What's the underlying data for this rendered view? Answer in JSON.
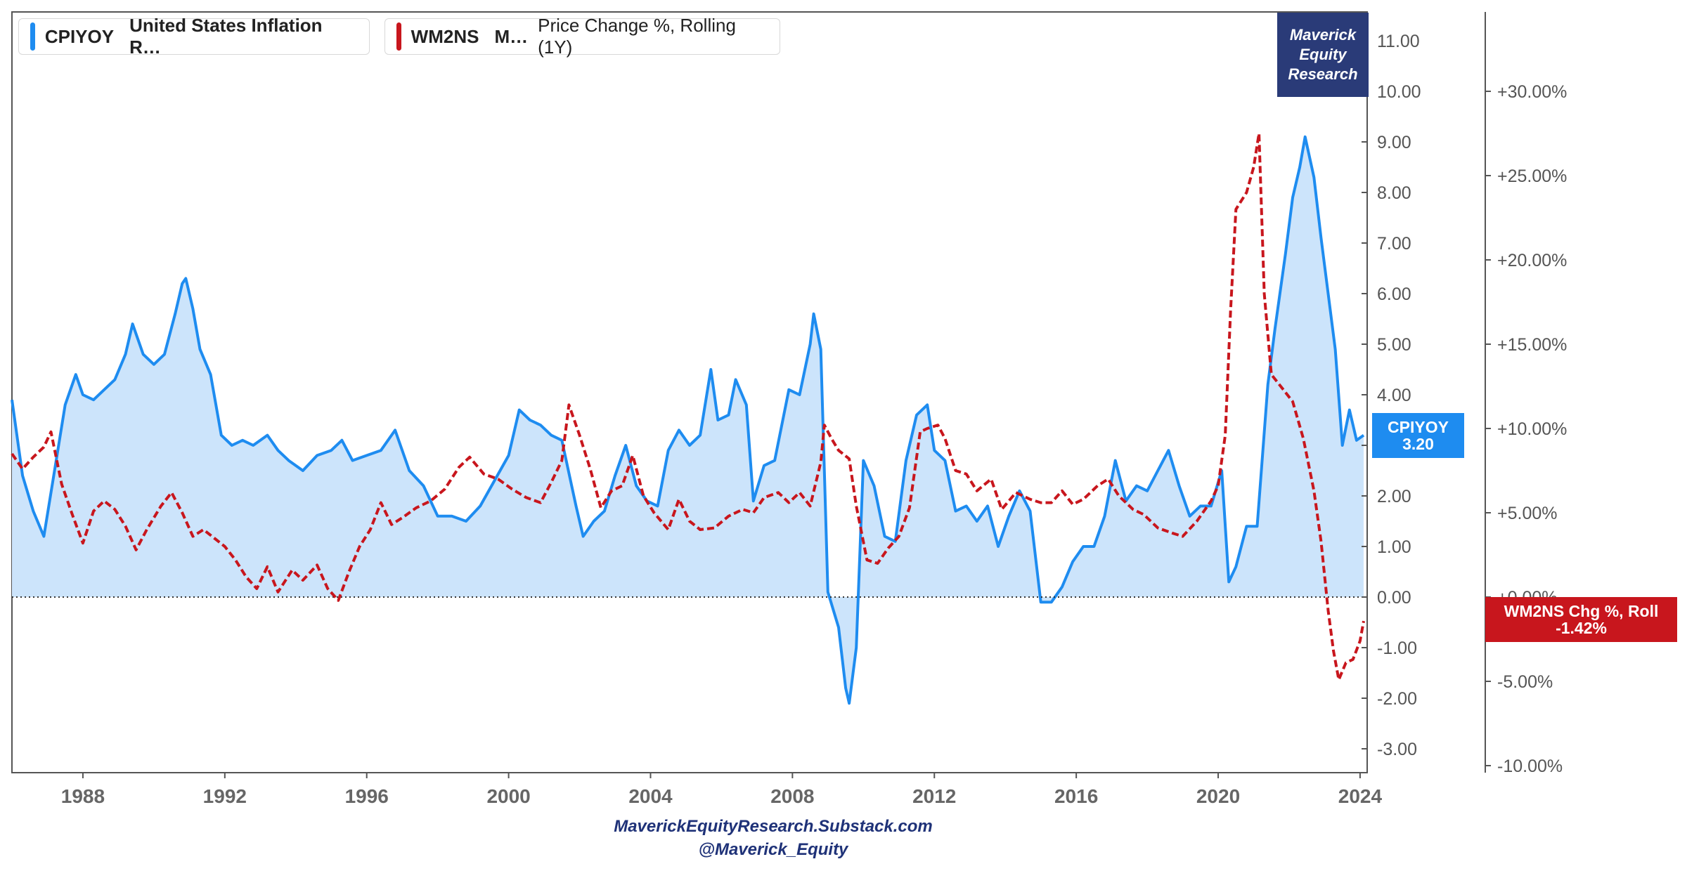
{
  "legend": [
    {
      "code": "CPIYOY",
      "name": "United States Inflation R…",
      "metric": "",
      "color": "#1e8cf0"
    },
    {
      "code": "WM2NS",
      "name": "M…",
      "metric": "Price Change %, Rolling (1Y)",
      "color": "#c8161d"
    }
  ],
  "brand": [
    "Maverick",
    "Equity",
    "Research"
  ],
  "tags": {
    "cpi_name": "CPIYOY",
    "cpi_value": "3.20",
    "m2_name": "WM2NS Chg %, Roll",
    "m2_value": "-1.42%"
  },
  "footer": {
    "line1": "MaverickEquityResearch.Substack.com",
    "line2": "@Maverick_Equity"
  },
  "chart_data": {
    "type": "line",
    "x_range": [
      1986.0,
      2024.2
    ],
    "x_ticks": [
      "1988",
      "1992",
      "1996",
      "2000",
      "2004",
      "2008",
      "2012",
      "2016",
      "2020",
      "2024"
    ],
    "y_left": {
      "min": -3.5,
      "max": 11.5,
      "ticks": [
        "11.00",
        "10.00",
        "9.00",
        "8.00",
        "7.00",
        "6.00",
        "5.00",
        "4.00",
        "3.00",
        "2.00",
        "1.00",
        "0.00",
        "-1.00",
        "-2.00",
        "-3.00"
      ]
    },
    "y_right": {
      "min": -10.0,
      "max": 35.0,
      "ticks": [
        "+30.00%",
        "+25.00%",
        "+20.00%",
        "+15.00%",
        "+10.00%",
        "+5.00%",
        "+0.00%",
        "-5.00%",
        "-10.00%"
      ]
    },
    "zero_line": "dotted",
    "series": [
      {
        "name": "CPIYOY",
        "axis": "left",
        "style": "solid-area",
        "color": "#1e8cf0",
        "fill": "#cce4fb",
        "points": [
          [
            1986.0,
            3.9
          ],
          [
            1986.3,
            2.4
          ],
          [
            1986.6,
            1.7
          ],
          [
            1986.9,
            1.2
          ],
          [
            1987.2,
            2.5
          ],
          [
            1987.5,
            3.8
          ],
          [
            1987.8,
            4.4
          ],
          [
            1988.0,
            4.0
          ],
          [
            1988.3,
            3.9
          ],
          [
            1988.6,
            4.1
          ],
          [
            1988.9,
            4.3
          ],
          [
            1989.2,
            4.8
          ],
          [
            1989.4,
            5.4
          ],
          [
            1989.7,
            4.8
          ],
          [
            1990.0,
            4.6
          ],
          [
            1990.3,
            4.8
          ],
          [
            1990.6,
            5.6
          ],
          [
            1990.8,
            6.2
          ],
          [
            1990.9,
            6.3
          ],
          [
            1991.1,
            5.7
          ],
          [
            1991.3,
            4.9
          ],
          [
            1991.6,
            4.4
          ],
          [
            1991.9,
            3.2
          ],
          [
            1992.2,
            3.0
          ],
          [
            1992.5,
            3.1
          ],
          [
            1992.8,
            3.0
          ],
          [
            1993.2,
            3.2
          ],
          [
            1993.5,
            2.9
          ],
          [
            1993.8,
            2.7
          ],
          [
            1994.2,
            2.5
          ],
          [
            1994.6,
            2.8
          ],
          [
            1995.0,
            2.9
          ],
          [
            1995.3,
            3.1
          ],
          [
            1995.6,
            2.7
          ],
          [
            1996.0,
            2.8
          ],
          [
            1996.4,
            2.9
          ],
          [
            1996.8,
            3.3
          ],
          [
            1997.2,
            2.5
          ],
          [
            1997.6,
            2.2
          ],
          [
            1998.0,
            1.6
          ],
          [
            1998.4,
            1.6
          ],
          [
            1998.8,
            1.5
          ],
          [
            1999.2,
            1.8
          ],
          [
            1999.6,
            2.3
          ],
          [
            2000.0,
            2.8
          ],
          [
            2000.3,
            3.7
          ],
          [
            2000.6,
            3.5
          ],
          [
            2000.9,
            3.4
          ],
          [
            2001.2,
            3.2
          ],
          [
            2001.5,
            3.1
          ],
          [
            2001.9,
            1.8
          ],
          [
            2002.1,
            1.2
          ],
          [
            2002.4,
            1.5
          ],
          [
            2002.7,
            1.7
          ],
          [
            2003.0,
            2.4
          ],
          [
            2003.3,
            3.0
          ],
          [
            2003.6,
            2.2
          ],
          [
            2003.9,
            1.9
          ],
          [
            2004.2,
            1.8
          ],
          [
            2004.5,
            2.9
          ],
          [
            2004.8,
            3.3
          ],
          [
            2005.1,
            3.0
          ],
          [
            2005.4,
            3.2
          ],
          [
            2005.7,
            4.5
          ],
          [
            2005.9,
            3.5
          ],
          [
            2006.2,
            3.6
          ],
          [
            2006.4,
            4.3
          ],
          [
            2006.7,
            3.8
          ],
          [
            2006.9,
            1.9
          ],
          [
            2007.2,
            2.6
          ],
          [
            2007.5,
            2.7
          ],
          [
            2007.9,
            4.1
          ],
          [
            2008.2,
            4.0
          ],
          [
            2008.5,
            5.0
          ],
          [
            2008.6,
            5.6
          ],
          [
            2008.8,
            4.9
          ],
          [
            2009.0,
            0.1
          ],
          [
            2009.3,
            -0.6
          ],
          [
            2009.5,
            -1.8
          ],
          [
            2009.6,
            -2.1
          ],
          [
            2009.8,
            -1.0
          ],
          [
            2010.0,
            2.7
          ],
          [
            2010.3,
            2.2
          ],
          [
            2010.6,
            1.2
          ],
          [
            2010.9,
            1.1
          ],
          [
            2011.2,
            2.7
          ],
          [
            2011.5,
            3.6
          ],
          [
            2011.8,
            3.8
          ],
          [
            2012.0,
            2.9
          ],
          [
            2012.3,
            2.7
          ],
          [
            2012.6,
            1.7
          ],
          [
            2012.9,
            1.8
          ],
          [
            2013.2,
            1.5
          ],
          [
            2013.5,
            1.8
          ],
          [
            2013.8,
            1.0
          ],
          [
            2014.1,
            1.6
          ],
          [
            2014.4,
            2.1
          ],
          [
            2014.7,
            1.7
          ],
          [
            2015.0,
            -0.1
          ],
          [
            2015.3,
            -0.1
          ],
          [
            2015.6,
            0.2
          ],
          [
            2015.9,
            0.7
          ],
          [
            2016.2,
            1.0
          ],
          [
            2016.5,
            1.0
          ],
          [
            2016.8,
            1.6
          ],
          [
            2017.1,
            2.7
          ],
          [
            2017.4,
            1.9
          ],
          [
            2017.7,
            2.2
          ],
          [
            2018.0,
            2.1
          ],
          [
            2018.3,
            2.5
          ],
          [
            2018.6,
            2.9
          ],
          [
            2018.9,
            2.2
          ],
          [
            2019.2,
            1.6
          ],
          [
            2019.5,
            1.8
          ],
          [
            2019.8,
            1.8
          ],
          [
            2020.1,
            2.5
          ],
          [
            2020.3,
            0.3
          ],
          [
            2020.5,
            0.6
          ],
          [
            2020.8,
            1.4
          ],
          [
            2021.1,
            1.4
          ],
          [
            2021.4,
            4.2
          ],
          [
            2021.6,
            5.3
          ],
          [
            2021.9,
            6.8
          ],
          [
            2022.1,
            7.9
          ],
          [
            2022.3,
            8.5
          ],
          [
            2022.45,
            9.1
          ],
          [
            2022.7,
            8.3
          ],
          [
            2022.9,
            7.1
          ],
          [
            2023.1,
            6.0
          ],
          [
            2023.3,
            4.9
          ],
          [
            2023.5,
            3.0
          ],
          [
            2023.7,
            3.7
          ],
          [
            2023.9,
            3.1
          ],
          [
            2024.1,
            3.2
          ]
        ]
      },
      {
        "name": "WM2NS",
        "axis": "right",
        "style": "dashed",
        "color": "#c8161d",
        "points": [
          [
            1986.0,
            8.5
          ],
          [
            1986.3,
            7.6
          ],
          [
            1986.6,
            8.3
          ],
          [
            1986.9,
            8.9
          ],
          [
            1987.1,
            9.8
          ],
          [
            1987.4,
            6.7
          ],
          [
            1987.7,
            4.9
          ],
          [
            1988.0,
            3.2
          ],
          [
            1988.3,
            5.1
          ],
          [
            1988.6,
            5.7
          ],
          [
            1988.9,
            5.2
          ],
          [
            1989.2,
            4.2
          ],
          [
            1989.5,
            2.8
          ],
          [
            1989.8,
            4.0
          ],
          [
            1990.2,
            5.4
          ],
          [
            1990.5,
            6.2
          ],
          [
            1990.8,
            5.0
          ],
          [
            1991.1,
            3.6
          ],
          [
            1991.4,
            4.0
          ],
          [
            1991.7,
            3.5
          ],
          [
            1992.0,
            3.0
          ],
          [
            1992.3,
            2.2
          ],
          [
            1992.6,
            1.2
          ],
          [
            1992.9,
            0.5
          ],
          [
            1993.2,
            1.8
          ],
          [
            1993.5,
            0.3
          ],
          [
            1993.9,
            1.6
          ],
          [
            1994.2,
            1.0
          ],
          [
            1994.6,
            1.9
          ],
          [
            1994.9,
            0.5
          ],
          [
            1995.2,
            -0.2
          ],
          [
            1995.5,
            1.5
          ],
          [
            1995.8,
            3.0
          ],
          [
            1996.1,
            4.0
          ],
          [
            1996.4,
            5.6
          ],
          [
            1996.7,
            4.3
          ],
          [
            1997.0,
            4.7
          ],
          [
            1997.4,
            5.3
          ],
          [
            1997.8,
            5.7
          ],
          [
            1998.2,
            6.4
          ],
          [
            1998.6,
            7.7
          ],
          [
            1998.9,
            8.3
          ],
          [
            1999.3,
            7.3
          ],
          [
            1999.7,
            7.0
          ],
          [
            2000.1,
            6.4
          ],
          [
            2000.5,
            5.9
          ],
          [
            2000.9,
            5.6
          ],
          [
            2001.2,
            6.8
          ],
          [
            2001.5,
            8.1
          ],
          [
            2001.7,
            11.4
          ],
          [
            2002.0,
            9.6
          ],
          [
            2002.3,
            7.6
          ],
          [
            2002.6,
            5.3
          ],
          [
            2002.9,
            6.3
          ],
          [
            2003.2,
            6.6
          ],
          [
            2003.5,
            8.4
          ],
          [
            2003.8,
            6.0
          ],
          [
            2004.1,
            5.0
          ],
          [
            2004.5,
            4.0
          ],
          [
            2004.8,
            5.8
          ],
          [
            2005.1,
            4.5
          ],
          [
            2005.4,
            4.0
          ],
          [
            2005.8,
            4.1
          ],
          [
            2006.2,
            4.8
          ],
          [
            2006.6,
            5.2
          ],
          [
            2006.9,
            5.0
          ],
          [
            2007.2,
            5.9
          ],
          [
            2007.6,
            6.2
          ],
          [
            2007.9,
            5.6
          ],
          [
            2008.2,
            6.2
          ],
          [
            2008.5,
            5.4
          ],
          [
            2008.8,
            8.0
          ],
          [
            2008.9,
            10.2
          ],
          [
            2009.1,
            9.4
          ],
          [
            2009.3,
            8.7
          ],
          [
            2009.6,
            8.2
          ],
          [
            2009.8,
            5.4
          ],
          [
            2010.1,
            2.2
          ],
          [
            2010.4,
            2.0
          ],
          [
            2010.7,
            2.9
          ],
          [
            2011.0,
            3.6
          ],
          [
            2011.3,
            5.3
          ],
          [
            2011.6,
            9.8
          ],
          [
            2011.8,
            10.0
          ],
          [
            2012.1,
            10.2
          ],
          [
            2012.3,
            9.4
          ],
          [
            2012.6,
            7.5
          ],
          [
            2012.9,
            7.3
          ],
          [
            2013.2,
            6.3
          ],
          [
            2013.6,
            7.0
          ],
          [
            2013.9,
            5.2
          ],
          [
            2014.3,
            6.2
          ],
          [
            2014.7,
            5.8
          ],
          [
            2015.0,
            5.6
          ],
          [
            2015.3,
            5.6
          ],
          [
            2015.6,
            6.3
          ],
          [
            2015.9,
            5.5
          ],
          [
            2016.2,
            5.8
          ],
          [
            2016.6,
            6.6
          ],
          [
            2016.9,
            7.0
          ],
          [
            2017.2,
            6.0
          ],
          [
            2017.6,
            5.2
          ],
          [
            2017.9,
            4.9
          ],
          [
            2018.3,
            4.1
          ],
          [
            2018.7,
            3.8
          ],
          [
            2019.0,
            3.6
          ],
          [
            2019.4,
            4.5
          ],
          [
            2019.8,
            5.7
          ],
          [
            2020.0,
            6.6
          ],
          [
            2020.2,
            9.6
          ],
          [
            2020.35,
            17.0
          ],
          [
            2020.5,
            23.0
          ],
          [
            2020.8,
            24.0
          ],
          [
            2021.0,
            25.5
          ],
          [
            2021.15,
            27.5
          ],
          [
            2021.3,
            18.0
          ],
          [
            2021.5,
            13.2
          ],
          [
            2021.8,
            12.4
          ],
          [
            2022.1,
            11.6
          ],
          [
            2022.4,
            9.4
          ],
          [
            2022.7,
            6.3
          ],
          [
            2022.9,
            3.3
          ],
          [
            2023.1,
            -0.8
          ],
          [
            2023.25,
            -3.2
          ],
          [
            2023.4,
            -4.9
          ],
          [
            2023.6,
            -3.9
          ],
          [
            2023.8,
            -3.7
          ],
          [
            2024.0,
            -2.6
          ],
          [
            2024.1,
            -1.42
          ]
        ]
      }
    ]
  }
}
